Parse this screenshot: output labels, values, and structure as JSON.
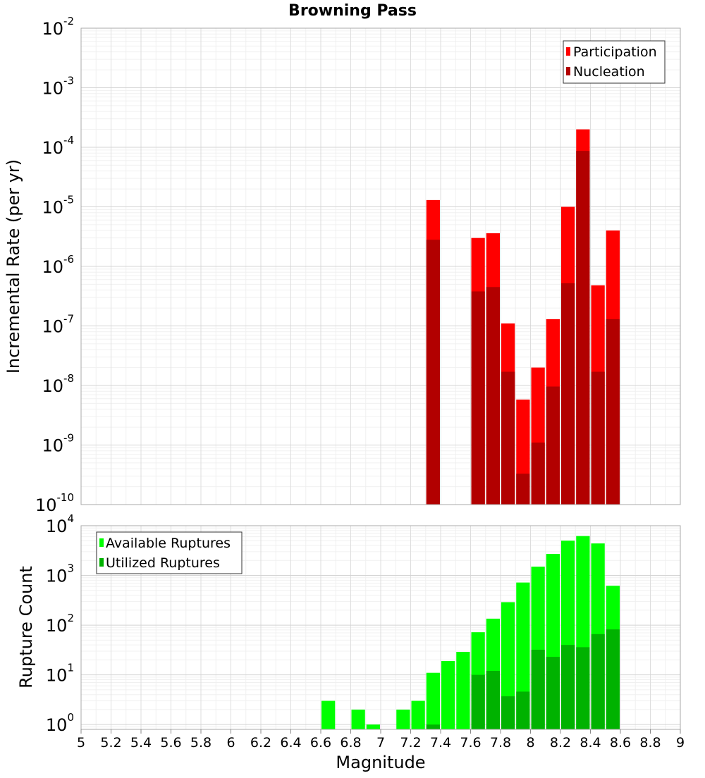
{
  "chart_data": [
    {
      "type": "bar",
      "title": "Browning Pass",
      "xlabel": "",
      "ylabel": "Incremental Rate (per yr)",
      "yscale": "log",
      "ylim": [
        1e-10,
        0.01
      ],
      "xlim": [
        5,
        9
      ],
      "ytick_labels": [
        {
          "base": "10",
          "exp": "-10"
        },
        {
          "base": "10",
          "exp": "-9"
        },
        {
          "base": "10",
          "exp": "-8"
        },
        {
          "base": "10",
          "exp": "-7"
        },
        {
          "base": "10",
          "exp": "-6"
        },
        {
          "base": "10",
          "exp": "-5"
        },
        {
          "base": "10",
          "exp": "-4"
        },
        {
          "base": "10",
          "exp": "-3"
        },
        {
          "base": "10",
          "exp": "-2"
        }
      ],
      "legend_position": "top-right",
      "grid": true,
      "x": [
        7.35,
        7.65,
        7.75,
        7.85,
        7.95,
        8.05,
        8.15,
        8.25,
        8.35,
        8.45,
        8.55
      ],
      "series": [
        {
          "name": "Participation",
          "color": "#ff0000",
          "values": [
            1.3e-05,
            3e-06,
            3.6e-06,
            1.1e-07,
            5.8e-09,
            2e-08,
            1.3e-07,
            1e-05,
            0.0002,
            4.8e-07,
            4e-06
          ]
        },
        {
          "name": "Nucleation",
          "color": "#b20000",
          "values": [
            2.8e-06,
            3.8e-07,
            4.5e-07,
            1.7e-08,
            3.3e-10,
            1.1e-09,
            9.6e-09,
            5.2e-07,
            8.7e-05,
            1.7e-08,
            1.3e-07
          ]
        }
      ]
    },
    {
      "type": "bar",
      "title": "",
      "xlabel": "Magnitude",
      "ylabel": "Rupture Count",
      "yscale": "log",
      "ylim": [
        0.8,
        10000
      ],
      "xlim": [
        5,
        9
      ],
      "ytick_labels": [
        {
          "base": "10",
          "exp": "0"
        },
        {
          "base": "10",
          "exp": "1"
        },
        {
          "base": "10",
          "exp": "2"
        },
        {
          "base": "10",
          "exp": "3"
        },
        {
          "base": "10",
          "exp": "4"
        }
      ],
      "xtick_labels": [
        "5",
        "5.2",
        "5.4",
        "5.6",
        "5.8",
        "6",
        "6.2",
        "6.4",
        "6.6",
        "6.8",
        "7",
        "7.2",
        "7.4",
        "7.6",
        "7.8",
        "8",
        "8.2",
        "8.4",
        "8.6",
        "8.8",
        "9"
      ],
      "legend_position": "top-left",
      "grid": true,
      "x": [
        6.65,
        6.85,
        6.95,
        7.15,
        7.25,
        7.35,
        7.45,
        7.55,
        7.65,
        7.75,
        7.85,
        7.95,
        8.05,
        8.15,
        8.25,
        8.35,
        8.45,
        8.55
      ],
      "series": [
        {
          "name": "Available Ruptures",
          "color": "#00ff00",
          "values": [
            3,
            2,
            1,
            2,
            3,
            11,
            19,
            29,
            72,
            135,
            290,
            720,
            1500,
            2700,
            5000,
            6200,
            4400,
            620
          ]
        },
        {
          "name": "Utilized Ruptures",
          "color": "#00b200",
          "values": [
            0,
            0,
            0,
            0,
            0,
            1,
            0,
            0,
            10,
            12,
            3.7,
            4.6,
            32,
            23,
            40,
            36,
            66,
            82
          ]
        }
      ]
    }
  ]
}
